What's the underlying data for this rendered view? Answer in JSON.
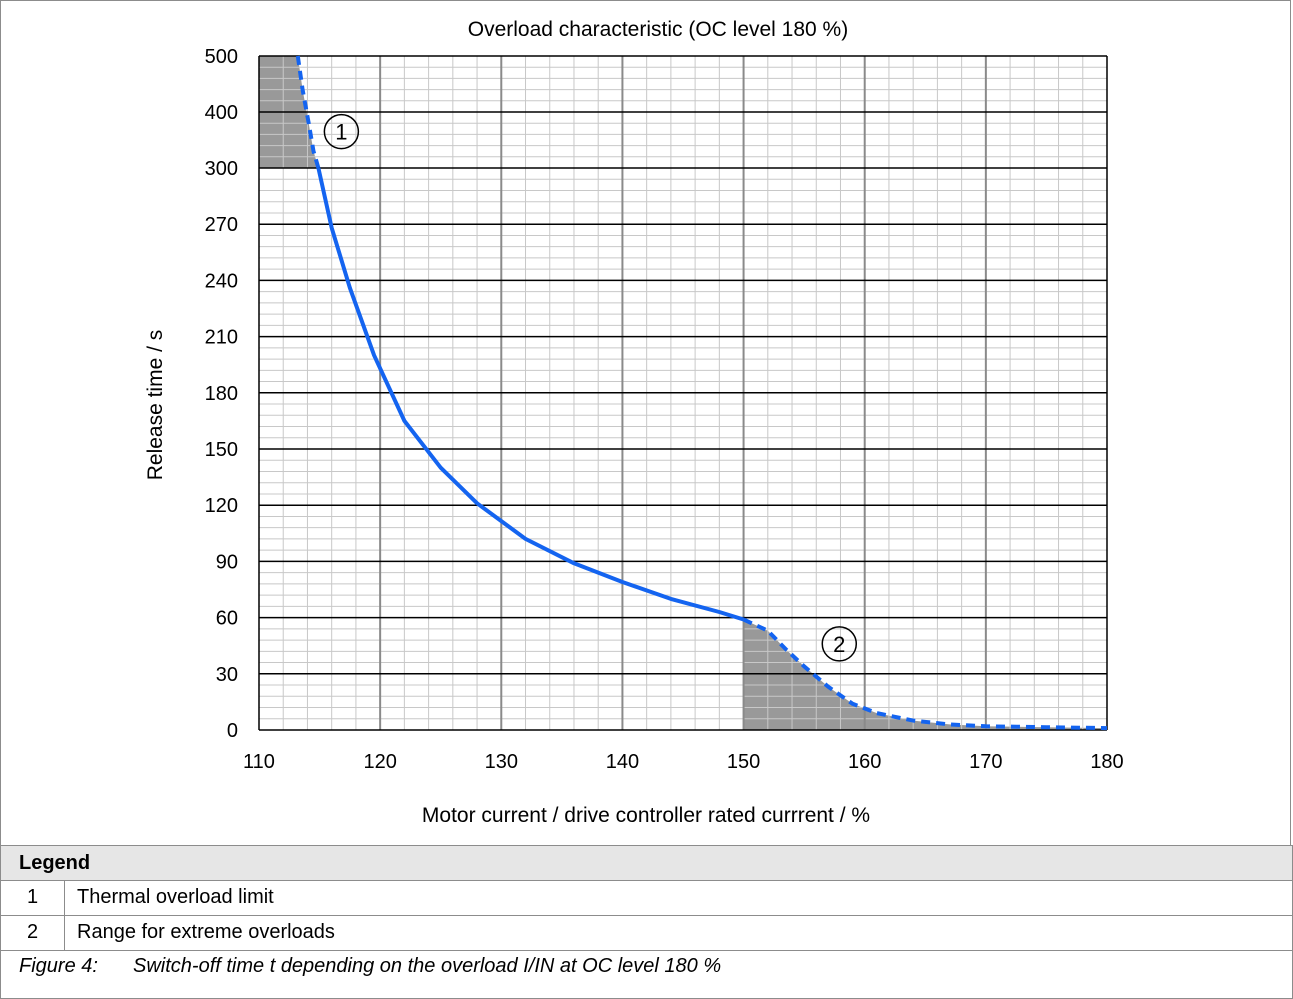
{
  "chart_data": {
    "type": "line",
    "title": "Overload characteristic (OC level 180 %)",
    "xlabel": "Motor current / drive controller rated currrent / %",
    "ylabel": "Release time / s",
    "xlim": [
      110,
      180
    ],
    "x_ticks": [
      "110",
      "120",
      "130",
      "140",
      "150",
      "160",
      "170",
      "180"
    ],
    "y_ticks": [
      "0",
      "30",
      "60",
      "90",
      "120",
      "150",
      "180",
      "210",
      "240",
      "270",
      "300",
      "400",
      "500"
    ],
    "y_scale_note": "piecewise: 0–300 in steps of 30, then 300–500 in steps of 100",
    "grid": true,
    "series": [
      {
        "style": "solid",
        "color": "#1464f0",
        "x": [
          114.9,
          116,
          117.5,
          119.5,
          122,
          125,
          128,
          132,
          136,
          140,
          144,
          148,
          150
        ],
        "y": [
          300,
          268,
          236,
          200,
          165,
          140,
          121,
          102,
          89,
          79,
          70,
          63,
          59
        ]
      },
      {
        "style": "dashed",
        "color": "#1464f0",
        "x": [
          113.2,
          113.6,
          114.1,
          114.5,
          114.9
        ],
        "y": [
          500,
          440,
          380,
          330,
          300
        ]
      },
      {
        "style": "dashed",
        "color": "#1464f0",
        "x": [
          150,
          152,
          153.5,
          155,
          157,
          159,
          161,
          164,
          167,
          170,
          175,
          180
        ],
        "y": [
          59,
          53,
          43,
          34,
          23,
          14,
          9,
          5,
          3,
          2,
          1.5,
          1
        ]
      }
    ],
    "shaded_regions": [
      {
        "name": "1",
        "x": [
          110,
          114.9
        ],
        "y": [
          300,
          500
        ]
      },
      {
        "name": "2",
        "x": [
          150,
          180
        ],
        "y": [
          0,
          59
        ]
      }
    ],
    "annotations": [
      {
        "label": "1",
        "x": 116.8,
        "y": 365
      },
      {
        "label": "2",
        "x": 157.9,
        "y": 46
      }
    ],
    "colors": {
      "curve": "#1464f0",
      "shade": "#999999",
      "major_grid": "#000000",
      "minor_grid": "#c8c8c8"
    }
  },
  "legend": {
    "header": "Legend",
    "items": [
      {
        "num": "1",
        "text": "Thermal overload limit"
      },
      {
        "num": "2",
        "text": "Range for extreme overloads"
      }
    ]
  },
  "caption": {
    "label": "Figure 4:",
    "text": "Switch-off time t depending on the overload I/IN at OC level 180 %"
  }
}
